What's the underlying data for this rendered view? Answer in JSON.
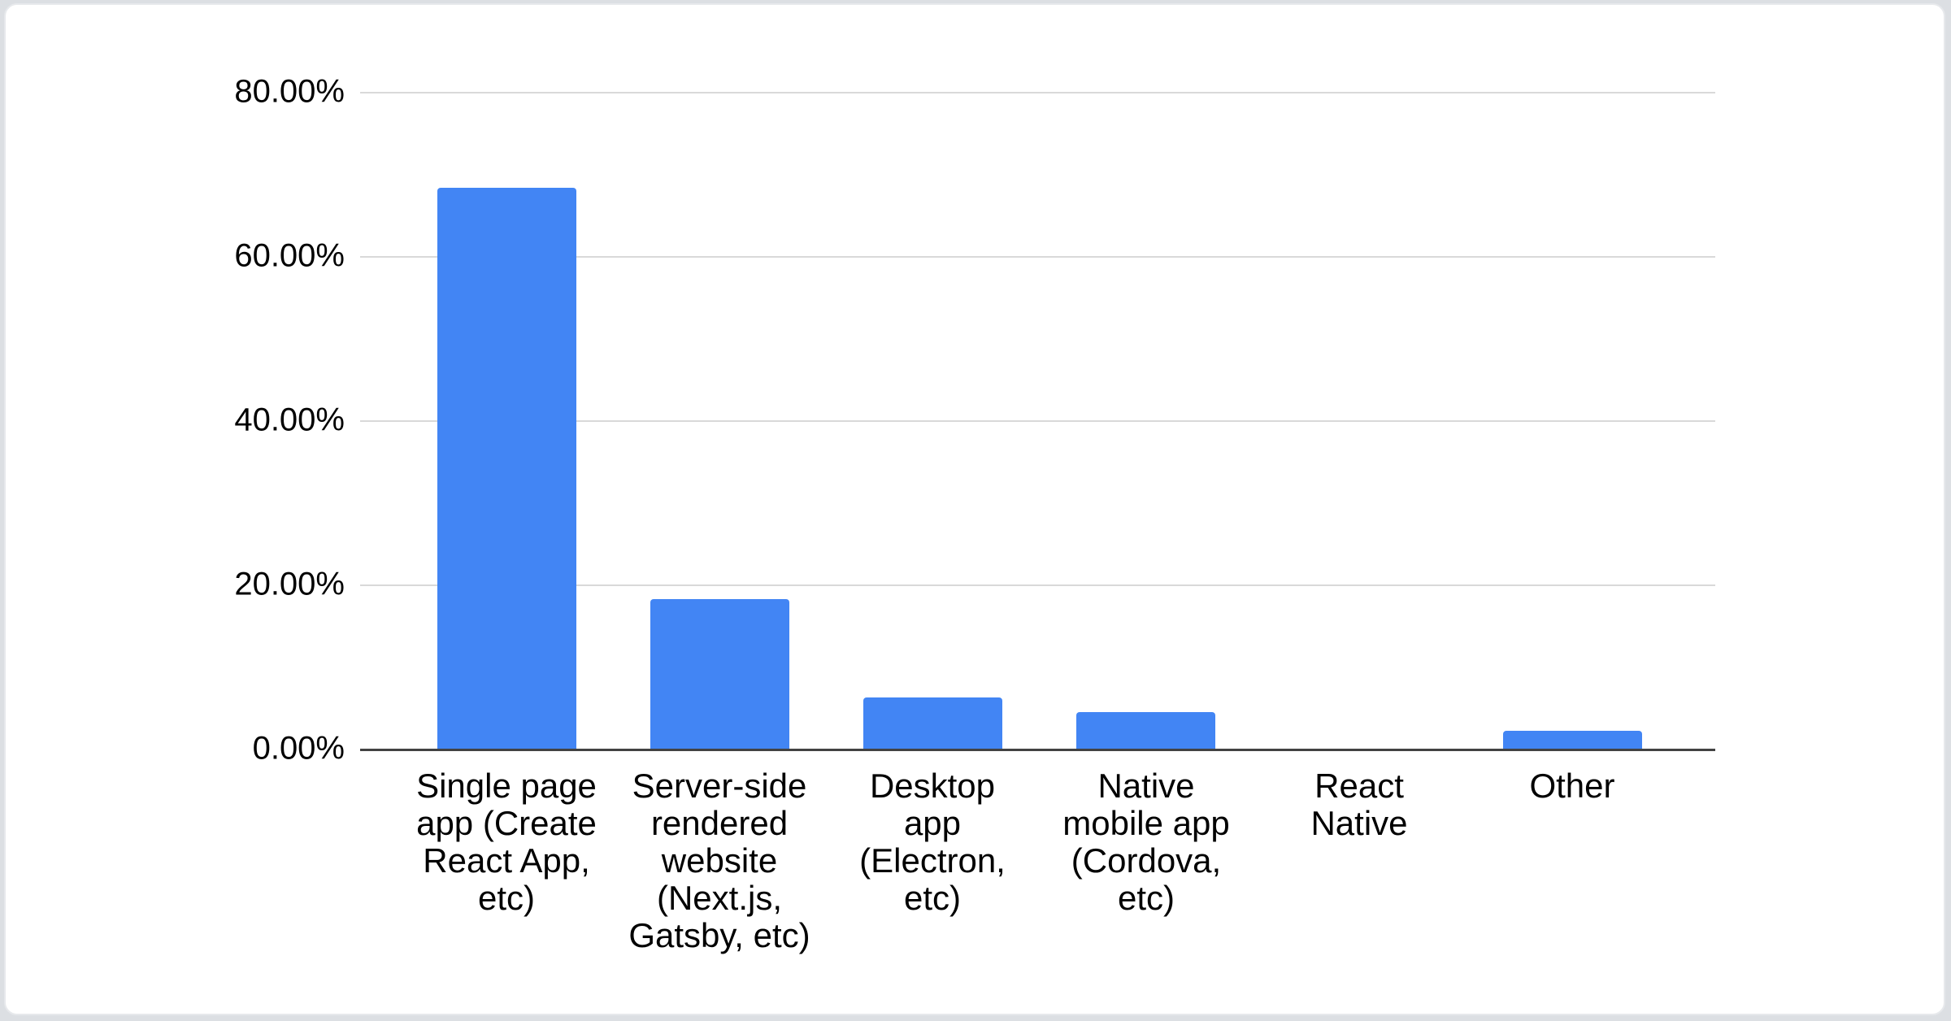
{
  "chart_data": {
    "type": "bar",
    "title": "",
    "xlabel": "",
    "ylabel": "",
    "categories": [
      "Single page app (Create React App, etc)",
      "Server-side rendered website (Next.js, Gatsby, etc)",
      "Desktop app (Electron, etc)",
      "Native mobile app (Cordova, etc)",
      "React Native",
      "Other"
    ],
    "category_labels_wrapped": [
      "Single page\napp (Create\nReact App,\netc)",
      "Server-side\nrendered\nwebsite\n(Next.js,\nGatsby, etc)",
      "Desktop\napp\n(Electron,\netc)",
      "Native\nmobile app\n(Cordova,\netc)",
      "React\nNative",
      "Other"
    ],
    "values": [
      68.4,
      18.3,
      6.3,
      4.6,
      0,
      2.3
    ],
    "unit": "%",
    "ytick_labels": [
      "80.00%",
      "60.00%",
      "40.00%",
      "20.00%",
      "0.00%"
    ],
    "ytick_values": [
      80,
      60,
      40,
      20,
      0
    ],
    "ylim": [
      0,
      80
    ],
    "grid": true,
    "legend": "none",
    "colors": {
      "bar": "#4285f4",
      "gridline": "#d9d9d9",
      "axis_line": "#424242",
      "text": "#000000",
      "card_background": "#ffffff",
      "page_background": "#dcdfe3"
    }
  }
}
